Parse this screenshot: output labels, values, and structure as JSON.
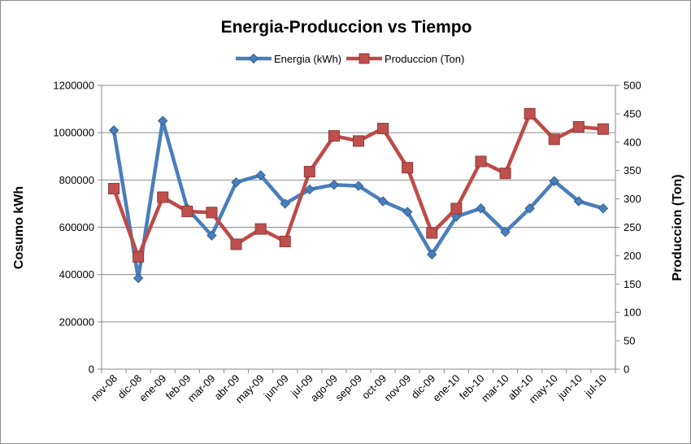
{
  "chart_data": {
    "type": "line",
    "title": "Energia-Produccion vs Tiempo",
    "categories": [
      "nov-08",
      "dic-08",
      "ene-09",
      "feb-09",
      "mar-09",
      "abr-09",
      "may-09",
      "jun-09",
      "jul-09",
      "ago-09",
      "sep-09",
      "oct-09",
      "nov-09",
      "dic-09",
      "ene-10",
      "feb-10",
      "mar-10",
      "abr-10",
      "may-10",
      "jun-10",
      "jul-10"
    ],
    "series": [
      {
        "name": "Energia (kWh)",
        "axis": "left",
        "color": "#4a7ebb",
        "marker": "diamond",
        "values": [
          1010000,
          385000,
          1050000,
          680000,
          565000,
          790000,
          820000,
          700000,
          760000,
          780000,
          775000,
          710000,
          665000,
          485000,
          645000,
          680000,
          580000,
          680000,
          795000,
          710000,
          680000
        ]
      },
      {
        "name": "Produccion (Ton)",
        "axis": "right",
        "color": "#be4b48",
        "marker": "square",
        "values": [
          318,
          198,
          303,
          278,
          276,
          220,
          247,
          225,
          348,
          411,
          402,
          424,
          355,
          240,
          283,
          366,
          345,
          450,
          405,
          427,
          423
        ]
      }
    ],
    "ylabel": "Cosumo kWh",
    "y2label": "Produccion (Ton)",
    "ylim": [
      0,
      1200000
    ],
    "y2lim": [
      0,
      500
    ],
    "yticks": [
      "0",
      "200000",
      "400000",
      "600000",
      "800000",
      "1000000",
      "1200000"
    ],
    "y2ticks": [
      "0",
      "50",
      "100",
      "150",
      "200",
      "250",
      "300",
      "350",
      "400",
      "450",
      "500"
    ],
    "grid": true,
    "legend": "top-center"
  }
}
